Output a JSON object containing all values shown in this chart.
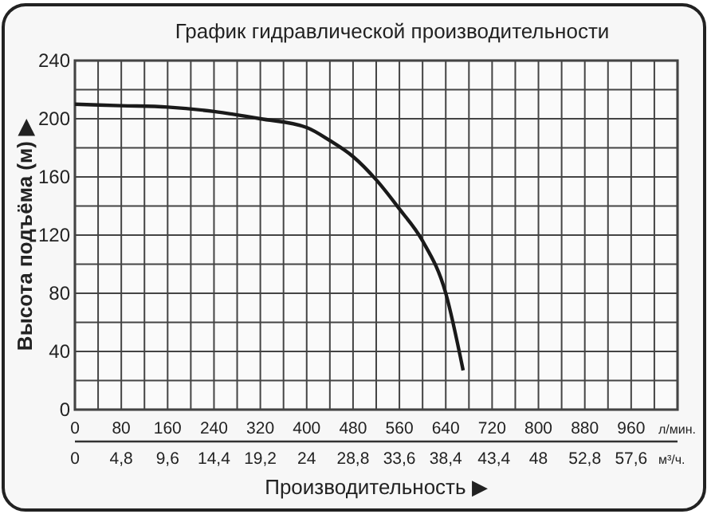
{
  "chart_data": {
    "type": "line",
    "title": "График гидравлической производительности",
    "xlabel": "Производительность ▶",
    "ylabel": "Высота подъёма (м) ▶",
    "annotations": [
      "л/мин.",
      "м³/ч."
    ],
    "x": [
      0,
      80,
      160,
      240,
      320,
      400,
      440,
      480,
      520,
      560,
      600,
      640,
      670
    ],
    "series": [
      {
        "color": "#1a1a1a",
        "values": [
          210,
          209,
          208,
          205,
          200,
          194,
          185,
          174,
          158,
          138,
          116,
          80,
          27
        ]
      }
    ],
    "xlim": [
      0,
      1040
    ],
    "xticks": [
      0,
      {
        "value": 40,
        "label": null
      },
      80,
      {
        "value": 120,
        "label": null
      },
      160,
      {
        "value": 200,
        "label": null
      },
      240,
      {
        "value": 280,
        "label": null
      },
      320,
      {
        "value": 360,
        "label": null
      },
      400,
      {
        "value": 440,
        "label": null
      },
      480,
      {
        "value": 520,
        "label": null
      },
      560,
      {
        "value": 600,
        "label": null
      },
      640,
      {
        "value": 680,
        "label": null
      },
      720,
      {
        "value": 760,
        "label": null
      },
      800,
      {
        "value": 840,
        "label": null
      },
      880,
      {
        "value": 920,
        "label": null
      },
      960,
      {
        "value": 1000,
        "label": null
      },
      {
        "value": 1040,
        "label": null
      }
    ],
    "x2lim": [
      0,
      62.4
    ],
    "x2ticks": [
      0,
      {
        "value": 4.8,
        "label": "4,8"
      },
      {
        "value": 9.6,
        "label": "9,6"
      },
      {
        "value": 14.4,
        "label": "14,4"
      },
      {
        "value": 19.2,
        "label": "19,2"
      },
      24,
      {
        "value": 28.8,
        "label": "28,8"
      },
      {
        "value": 33.6,
        "label": "33,6"
      },
      {
        "value": 38.4,
        "label": "38,4"
      },
      {
        "value": 43.4,
        "label": "43,4"
      },
      48,
      {
        "value": 52.8,
        "label": "52,8"
      },
      {
        "value": 57.6,
        "label": "57,6"
      }
    ],
    "ylim": [
      0,
      240
    ],
    "yticks": [
      0,
      {
        "value": 20,
        "label": null
      },
      40,
      {
        "value": 60,
        "label": null
      },
      80,
      {
        "value": 100,
        "label": null
      },
      120,
      {
        "value": 140,
        "label": null
      },
      160,
      {
        "value": 180,
        "label": null
      },
      200,
      {
        "value": 220,
        "label": null
      },
      240
    ],
    "grid": true,
    "marker": "none",
    "line_style": "solid"
  }
}
